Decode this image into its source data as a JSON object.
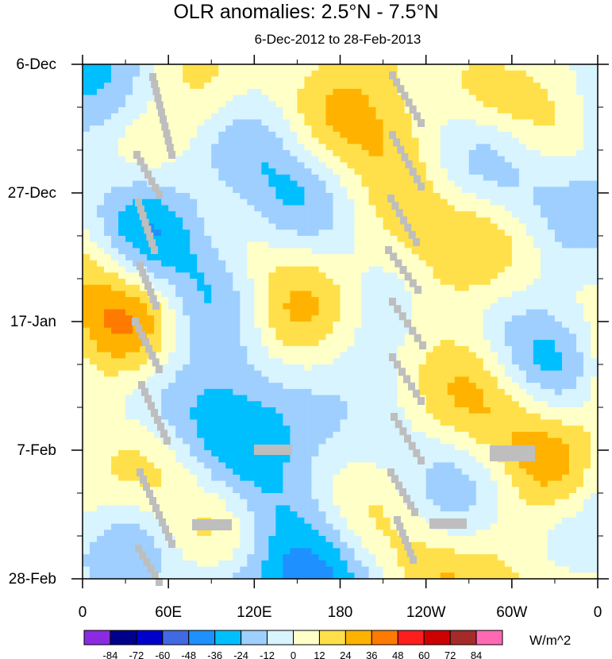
{
  "chart_data": {
    "type": "heatmap",
    "title": "OLR anomalies: 2.5°N - 7.5°N",
    "subtitle": "6-Dec-2012 to 28-Feb-2013",
    "x_ticks": [
      "0",
      "60E",
      "120E",
      "180",
      "120W",
      "60W",
      "0"
    ],
    "y_ticks": [
      "6-Dec",
      "27-Dec",
      "17-Jan",
      "7-Feb",
      "28-Feb"
    ],
    "x_range": [
      0,
      360
    ],
    "y_range": [
      "6-Dec-2012",
      "28-Feb-2013"
    ],
    "colorbar": {
      "units": "W/m^2",
      "levels": [
        -84,
        -72,
        -60,
        -48,
        -36,
        -24,
        -12,
        0,
        12,
        24,
        36,
        48,
        60,
        72,
        84
      ],
      "labels": [
        "-84",
        "-72",
        "-60",
        "-48",
        "-36",
        "-24",
        "-12",
        "0",
        "12",
        "24",
        "36",
        "48",
        "60",
        "72",
        "84"
      ],
      "colors": [
        "#8a2be2",
        "#00008b",
        "#0000cd",
        "#4169e1",
        "#1e90ff",
        "#00bfff",
        "#9fcfff",
        "#d8f4ff",
        "#ffffc8",
        "#ffe04a",
        "#ffb300",
        "#ff7a00",
        "#ff1e1e",
        "#cd0000",
        "#a52a2a",
        "#ff69b4"
      ]
    },
    "missing_color": "#bebebe"
  }
}
